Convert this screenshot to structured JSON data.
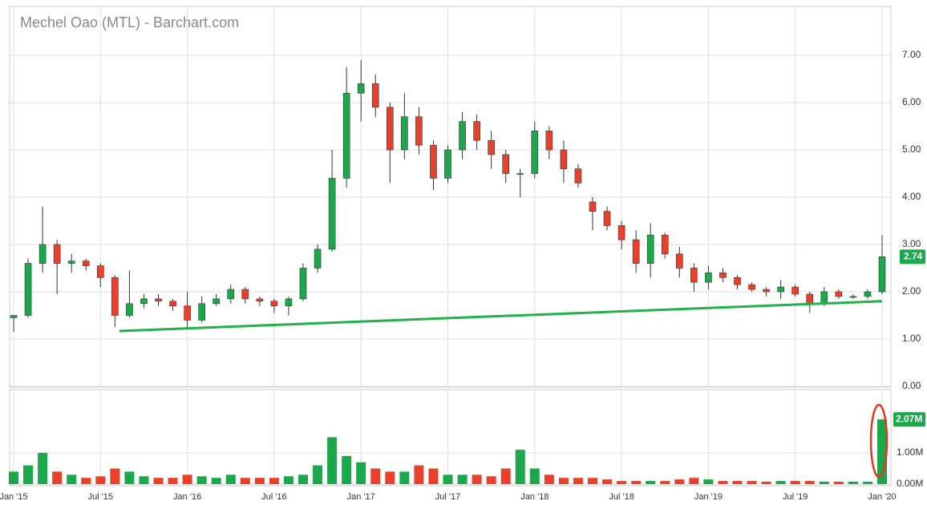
{
  "chart_data": {
    "type": "candlestick",
    "title": "Mechel Oao (MTL) - Barchart.com",
    "categories": [
      "Jan '15",
      null,
      null,
      null,
      null,
      null,
      "Jul '15",
      null,
      null,
      null,
      null,
      null,
      "Jan '16",
      null,
      null,
      null,
      null,
      null,
      "Jul '16",
      null,
      null,
      null,
      null,
      null,
      "Jan '17",
      null,
      null,
      null,
      null,
      null,
      "Jul '17",
      null,
      null,
      null,
      null,
      null,
      "Jan '18",
      null,
      null,
      null,
      null,
      null,
      "Jul '18",
      null,
      null,
      null,
      null,
      null,
      "Jan '19",
      null,
      null,
      null,
      null,
      null,
      "Jul '19",
      null,
      null,
      null,
      null,
      null,
      "Jan '20"
    ],
    "open": [
      1.45,
      1.5,
      2.6,
      3.0,
      2.6,
      2.65,
      2.55,
      2.3,
      1.5,
      1.75,
      1.85,
      1.8,
      1.7,
      1.4,
      1.75,
      1.85,
      2.05,
      1.85,
      1.8,
      1.7,
      1.85,
      2.5,
      2.9,
      4.4,
      6.2,
      6.4,
      5.9,
      5.0,
      5.7,
      5.1,
      4.4,
      5.0,
      5.6,
      5.2,
      4.9,
      4.5,
      4.5,
      5.4,
      5.0,
      4.6,
      3.9,
      3.7,
      3.4,
      3.1,
      2.6,
      3.2,
      2.8,
      2.5,
      2.2,
      2.4,
      2.3,
      2.15,
      2.05,
      2.0,
      2.1,
      1.95,
      1.75,
      2.0,
      1.9,
      1.9,
      2.0
    ],
    "high": [
      1.5,
      2.7,
      3.8,
      3.1,
      2.8,
      2.7,
      2.6,
      2.35,
      2.45,
      1.95,
      1.95,
      1.85,
      2.0,
      1.9,
      1.95,
      2.15,
      2.1,
      1.9,
      1.85,
      1.9,
      2.6,
      3.0,
      5.0,
      6.75,
      6.9,
      6.6,
      6.0,
      6.2,
      5.9,
      5.2,
      5.1,
      5.8,
      5.75,
      5.4,
      5.0,
      4.6,
      5.6,
      5.5,
      5.2,
      4.7,
      4.0,
      3.8,
      3.5,
      3.3,
      3.45,
      3.25,
      2.95,
      2.6,
      2.55,
      2.5,
      2.35,
      2.2,
      2.1,
      2.25,
      2.15,
      2.0,
      2.1,
      2.05,
      1.95,
      2.05,
      3.2
    ],
    "low": [
      1.15,
      1.45,
      2.4,
      1.95,
      2.4,
      2.45,
      2.1,
      1.25,
      1.45,
      1.65,
      1.7,
      1.6,
      1.25,
      1.35,
      1.7,
      1.75,
      1.75,
      1.7,
      1.55,
      1.5,
      1.8,
      2.4,
      2.85,
      4.2,
      5.6,
      5.7,
      4.3,
      4.8,
      4.9,
      4.15,
      4.3,
      4.8,
      5.0,
      4.6,
      4.3,
      4.0,
      4.4,
      4.8,
      4.3,
      4.2,
      3.3,
      3.3,
      2.9,
      2.4,
      2.3,
      2.7,
      2.3,
      2.0,
      2.05,
      2.2,
      2.05,
      2.0,
      1.9,
      1.85,
      1.9,
      1.55,
      1.7,
      1.85,
      1.85,
      1.85,
      1.95
    ],
    "close": [
      1.5,
      2.6,
      3.0,
      2.6,
      2.65,
      2.55,
      2.3,
      1.5,
      1.75,
      1.85,
      1.8,
      1.7,
      1.4,
      1.75,
      1.85,
      2.05,
      1.85,
      1.8,
      1.7,
      1.85,
      2.5,
      2.9,
      4.4,
      6.2,
      6.4,
      5.9,
      5.0,
      5.7,
      5.1,
      4.4,
      5.0,
      5.6,
      5.2,
      4.9,
      4.5,
      4.5,
      5.4,
      5.0,
      4.6,
      4.3,
      3.7,
      3.4,
      3.1,
      2.6,
      3.2,
      2.8,
      2.5,
      2.2,
      2.4,
      2.3,
      2.15,
      2.05,
      2.0,
      2.1,
      1.95,
      1.75,
      2.0,
      1.9,
      1.9,
      2.0,
      2.74
    ],
    "volume": [
      0.4,
      0.6,
      1.0,
      0.4,
      0.3,
      0.2,
      0.25,
      0.5,
      0.4,
      0.25,
      0.2,
      0.2,
      0.3,
      0.25,
      0.2,
      0.3,
      0.2,
      0.2,
      0.2,
      0.25,
      0.3,
      0.6,
      1.5,
      0.9,
      0.7,
      0.5,
      0.4,
      0.4,
      0.6,
      0.5,
      0.3,
      0.3,
      0.3,
      0.25,
      0.5,
      1.1,
      0.5,
      0.3,
      0.2,
      0.2,
      0.2,
      0.15,
      0.1,
      0.1,
      0.1,
      0.1,
      0.15,
      0.2,
      0.15,
      0.1,
      0.1,
      0.1,
      0.08,
      0.1,
      0.1,
      0.1,
      0.08,
      0.08,
      0.08,
      0.08,
      2.07
    ],
    "last_volume_label": "2.07M",
    "up_color": "#1aa84a",
    "down_color": "#e8402b",
    "trendline_x": [
      7.3,
      60
    ],
    "trendline_y": [
      1.17,
      1.8
    ],
    "trendline_color": "#22b04b",
    "ylim": [
      0,
      8
    ],
    "yticks": [
      {
        "value": 0,
        "label": "0.00"
      },
      {
        "value": 1,
        "label": "1.00"
      },
      {
        "value": 2,
        "label": "2.00"
      },
      {
        "value": 3,
        "label": "3.00"
      },
      {
        "value": 4,
        "label": "4.00"
      },
      {
        "value": 5,
        "label": "5.00"
      },
      {
        "value": 6,
        "label": "6.00"
      },
      {
        "value": 7,
        "label": "7.00"
      }
    ],
    "y2lim": [
      0,
      3
    ],
    "y2ticks": [
      {
        "value": 0,
        "label": "0.00M"
      },
      {
        "value": 1,
        "label": "1.00M"
      }
    ],
    "grid": true
  }
}
